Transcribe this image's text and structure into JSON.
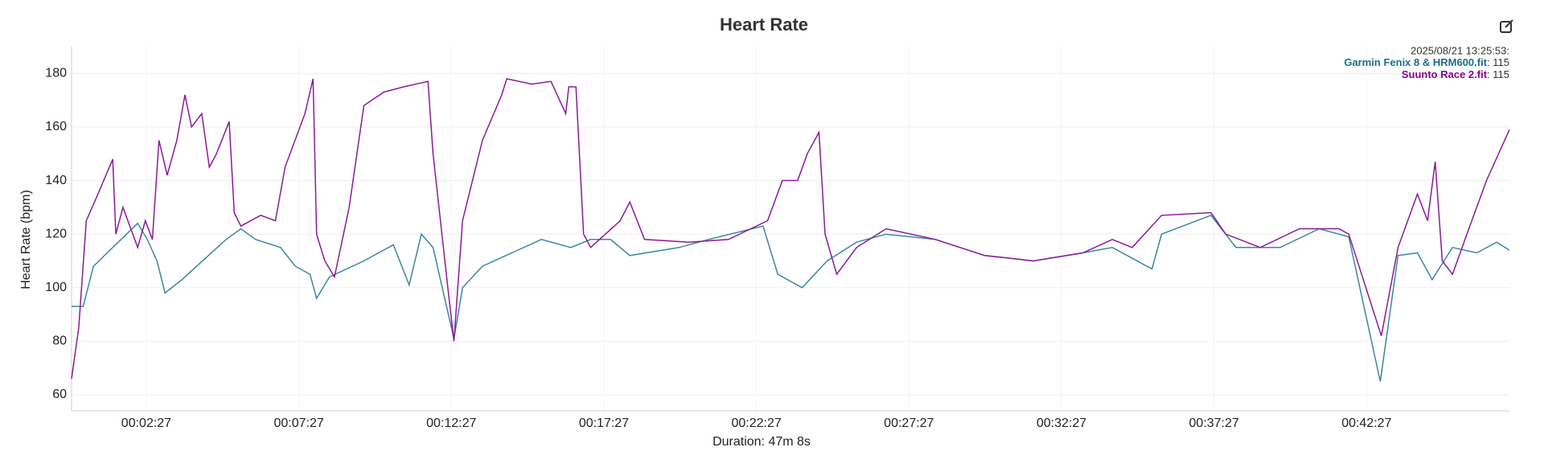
{
  "chart_data": {
    "type": "line",
    "title": "Heart Rate",
    "y_label": "Heart Rate (bpm)",
    "x_label": "Duration: 47m 8s",
    "xlim": [
      0,
      2828
    ],
    "xticks": [
      {
        "value": 147,
        "label": "00:02:27"
      },
      {
        "value": 447,
        "label": "00:07:27"
      },
      {
        "value": 747,
        "label": "00:12:27"
      },
      {
        "value": 1047,
        "label": "00:17:27"
      },
      {
        "value": 1347,
        "label": "00:22:27"
      },
      {
        "value": 1647,
        "label": "00:27:27"
      },
      {
        "value": 1947,
        "label": "00:32:27"
      },
      {
        "value": 2247,
        "label": "00:37:27"
      },
      {
        "value": 2547,
        "label": "00:42:27"
      }
    ],
    "ylim": [
      54,
      190
    ],
    "yticks": [
      60,
      80,
      100,
      120,
      140,
      160,
      180
    ],
    "grid": true,
    "tooltip": {
      "time": "2025/08/21 13:25:53:",
      "items": [
        {
          "name": "Garmin Fenix 8 & HRM600.fit",
          "label": ": 115",
          "color": "#1f6e8c"
        },
        {
          "name": "Suunto Race 2.fit",
          "label": ": 115",
          "color": "#8b008b"
        }
      ]
    },
    "series": [
      {
        "name": "Garmin Fenix 8 & HRM600.fit",
        "color": "#3a87a0",
        "x": [
          0,
          23,
          43,
          81,
          130,
          149,
          168,
          184,
          217,
          246,
          304,
          333,
          362,
          411,
          440,
          469,
          482,
          507,
          575,
          633,
          664,
          688,
          711,
          752,
          769,
          808,
          866,
          924,
          982,
          1021,
          1060,
          1098,
          1195,
          1253,
          1360,
          1389,
          1437,
          1486,
          1544,
          1602,
          1699,
          1796,
          1892,
          1989,
          2047,
          2125,
          2144,
          2241,
          2290,
          2377,
          2454,
          2512,
          2574,
          2609,
          2647,
          2676,
          2716,
          2764,
          2803,
          2828
        ],
        "values": [
          93,
          93,
          108,
          115,
          124,
          118,
          110,
          98,
          103,
          108,
          118,
          122,
          118,
          115,
          108,
          105,
          96,
          104,
          110,
          116,
          101,
          120,
          115,
          81,
          100,
          108,
          113,
          118,
          115,
          118,
          118,
          112,
          115,
          118,
          123,
          105,
          100,
          110,
          117,
          120,
          118,
          112,
          110,
          113,
          115,
          107,
          120,
          127,
          115,
          115,
          122,
          119,
          65,
          112,
          113,
          103,
          115,
          113,
          117,
          114
        ]
      },
      {
        "name": "Suunto Race 2.fit",
        "color": "#8b1a9b",
        "x": [
          0,
          14,
          29,
          52,
          81,
          87,
          101,
          130,
          145,
          159,
          172,
          188,
          207,
          223,
          236,
          256,
          271,
          285,
          310,
          320,
          333,
          372,
          401,
          420,
          459,
          475,
          482,
          498,
          517,
          546,
          575,
          614,
          653,
          701,
          711,
          740,
          752,
          769,
          808,
          846,
          856,
          905,
          943,
          972,
          978,
          992,
          1007,
          1021,
          1079,
          1098,
          1127,
          1215,
          1292,
          1369,
          1398,
          1428,
          1447,
          1470,
          1482,
          1505,
          1544,
          1602,
          1699,
          1796,
          1892,
          1989,
          2047,
          2086,
          2144,
          2241,
          2270,
          2338,
          2415,
          2493,
          2512,
          2576,
          2609,
          2647,
          2667,
          2682,
          2696,
          2716,
          2754,
          2783,
          2828
        ],
        "values": [
          66,
          85,
          125,
          135,
          148,
          120,
          130,
          115,
          125,
          118,
          155,
          142,
          155,
          172,
          160,
          165,
          145,
          150,
          162,
          128,
          123,
          127,
          125,
          145,
          165,
          178,
          120,
          110,
          104,
          130,
          168,
          173,
          175,
          177,
          150,
          100,
          80,
          125,
          155,
          172,
          178,
          176,
          177,
          165,
          175,
          175,
          120,
          115,
          125,
          132,
          118,
          117,
          118,
          125,
          140,
          140,
          150,
          158,
          120,
          105,
          115,
          122,
          118,
          112,
          110,
          113,
          118,
          115,
          127,
          128,
          120,
          115,
          122,
          122,
          120,
          82,
          115,
          135,
          125,
          147,
          110,
          105,
          125,
          140,
          159
        ]
      }
    ]
  }
}
